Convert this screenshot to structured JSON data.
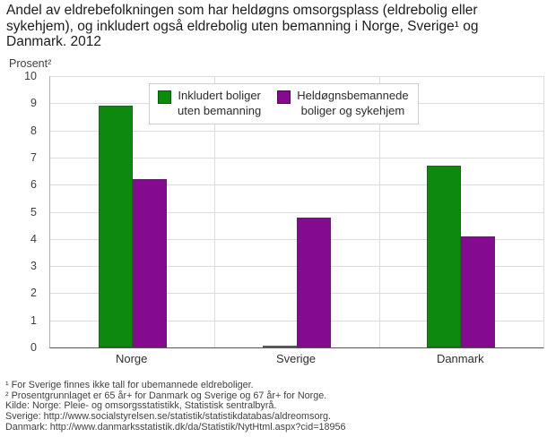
{
  "header": {
    "title_lines": [
      "Andel av eldrebefolkningen som har heldøgns omsorgsplass (eldrebolig eller",
      "sykehjem), og inkludert også eldrebolig uten bemanning i Norge, Sverige¹ og",
      "Danmark. 2012"
    ]
  },
  "chart_data": {
    "type": "bar",
    "title": "Andel av eldrebefolkningen som har heldøgns omsorgsplass (eldrebolig eller sykehjem), og inkludert også eldrebolig uten bemanning i Norge, Sverige¹ og Danmark. 2012",
    "categories": [
      "Norge",
      "Sverige",
      "Danmark"
    ],
    "series": [
      {
        "name": "Inkludert boliger uten bemanning",
        "label_lines": [
          "Inkludert boliger",
          "uten bemanning"
        ],
        "color": "#0d8a0d",
        "values": [
          8.9,
          null,
          6.7
        ]
      },
      {
        "name": "Heldøgnsbemannede boliger og sykehjem",
        "label_lines": [
          "Heldøgnsbemannede",
          "boliger og sykehjem"
        ],
        "color": "#840b90",
        "values": [
          6.2,
          4.8,
          4.1
        ]
      }
    ],
    "xlabel": "",
    "ylabel": "Prosent²",
    "ylim": [
      0,
      10
    ],
    "ytick_step": 1,
    "grid": true,
    "legend_position": "top-center",
    "missing_note": "Sverige har ingen verdi for serien «Inkludert boliger uten bemanning»"
  },
  "colors": {
    "green": "#0d8a0d",
    "purple": "#840b90",
    "grid": "#dcdcdc",
    "axis": "#55565a",
    "background": "#ffffff"
  },
  "footnotes": [
    "¹ For Sverige finnes ikke tall for ubemannede eldreboliger.",
    "² Prosentgrunnlaget er 65 år+ for Danmark og Sverige og 67 år+ for Norge.",
    "Kilde: Norge: Pleie- og omsorgsstatistikk, Statistisk sentralbyrå.",
    "Sverige: http://www.socialstyrelsen.se/statistik/statistikdatabas/aldreomsorg.",
    "Danmark: http://www.danmarksstatistik.dk/da/Statistik/NytHtml.aspx?cid=18956"
  ]
}
